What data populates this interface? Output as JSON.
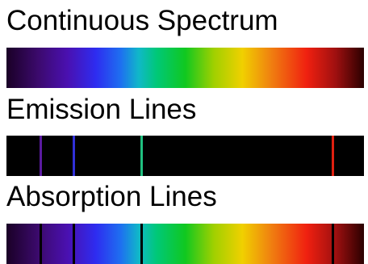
{
  "sections": {
    "continuous": {
      "title": "Continuous Spectrum"
    },
    "emission": {
      "title": "Emission Lines",
      "lines": [
        {
          "name": "violet-line",
          "position": 0.092,
          "color": "#5a1aa0"
        },
        {
          "name": "blue-line",
          "position": 0.185,
          "color": "#3030d8"
        },
        {
          "name": "green-line",
          "position": 0.375,
          "color": "#20c080"
        },
        {
          "name": "red-line",
          "position": 0.91,
          "color": "#e02010"
        }
      ]
    },
    "absorption": {
      "title": "Absorption Lines",
      "lines": [
        {
          "name": "violet-line",
          "position": 0.092,
          "color": "#000000"
        },
        {
          "name": "blue-line",
          "position": 0.185,
          "color": "#000000"
        },
        {
          "name": "green-line",
          "position": 0.375,
          "color": "#000000"
        },
        {
          "name": "red-line",
          "position": 0.91,
          "color": "#000000"
        }
      ]
    }
  }
}
